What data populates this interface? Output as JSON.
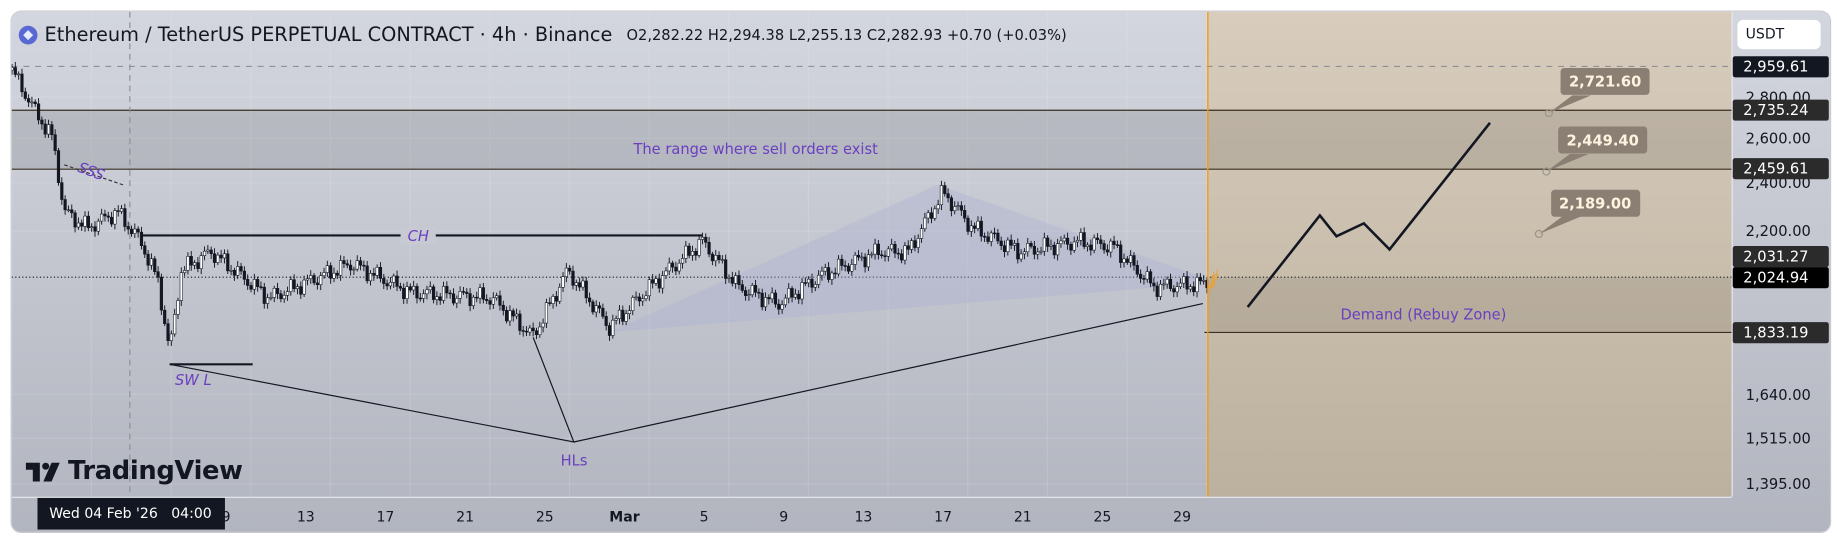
{
  "header": {
    "symbol_title": "Ethereum / TetherUS PERPETUAL CONTRACT · 4h · Binance",
    "open": "O2,282.22",
    "high": "H2,294.38",
    "low": "L2,255.13",
    "close": "C2,282.93",
    "change": "+0.70 (+0.03%)",
    "icon": "ethereum-icon"
  },
  "price_axis": {
    "currency": "USDT",
    "ticks": [
      "2,800.00",
      "2,600.00",
      "2,400.00",
      "2,200.00",
      "1,640.00",
      "1,515.00",
      "1,395.00"
    ],
    "tick_values": [
      2800,
      2600,
      2400,
      2200,
      1640,
      1515,
      1395
    ],
    "labels": [
      {
        "text": "2,959.61",
        "value": 2959.61,
        "color": "#131722"
      },
      {
        "text": "2,735.24",
        "value": 2735.24,
        "color": "#2b2b2b"
      },
      {
        "text": "2,459.61",
        "value": 2459.61,
        "color": "#2b2b2b"
      },
      {
        "text": "2,031.27",
        "value": 2031.27,
        "color": "#2b2b2b"
      },
      {
        "text": "2,024.94",
        "value": 2024.94,
        "color": "#000000"
      },
      {
        "text": "1,833.19",
        "value": 1833.19,
        "color": "#2b2b2b"
      }
    ],
    "scale": "log"
  },
  "time_axis": {
    "ticks": [
      {
        "label": "9",
        "date": "2026-02-09T00:00"
      },
      {
        "label": "13",
        "date": "2026-02-13T00:00"
      },
      {
        "label": "17",
        "date": "2026-02-17T00:00"
      },
      {
        "label": "21",
        "date": "2026-02-21T00:00"
      },
      {
        "label": "25",
        "date": "2026-02-25T00:00"
      },
      {
        "label": "Mar",
        "date": "2026-03-01T00:00",
        "bold": true
      },
      {
        "label": "5",
        "date": "2026-03-05T00:00"
      },
      {
        "label": "9",
        "date": "2026-03-09T00:00"
      },
      {
        "label": "13",
        "date": "2026-03-13T00:00"
      },
      {
        "label": "17",
        "date": "2026-03-17T00:00"
      },
      {
        "label": "21",
        "date": "2026-03-21T00:00"
      },
      {
        "label": "25",
        "date": "2026-03-25T00:00"
      },
      {
        "label": "29",
        "date": "2026-03-29T00:00"
      }
    ],
    "crosshair_label": "Wed 04 Feb '26   04:00",
    "crosshair_date": "2026-02-04T04:00"
  },
  "branding": {
    "logo_text": "TradingView"
  },
  "annotations": {
    "sell_range_text": "The range where sell orders exist",
    "demand_text": "Demand (Rebuy Zone)",
    "ch_text": "CH",
    "swl_text": "SW L",
    "sss_text": "SSS",
    "hls_text": "HLs",
    "callouts": [
      {
        "text": "2,721.60",
        "value": 2721.6,
        "date": "2026-04-16T10:00"
      },
      {
        "text": "2,449.40",
        "value": 2449.4,
        "date": "2026-04-16T07:00"
      },
      {
        "text": "2,189.00",
        "value": 2189.0,
        "date": "2026-04-15T22:00"
      }
    ]
  },
  "chart_data": {
    "type": "candlestick",
    "timeframe": "4h",
    "exchange": "Binance",
    "yscale": "log",
    "ylim": [
      1360,
      3050
    ],
    "xlim": [
      "2026-01-29T06:00",
      "2026-04-28T00:00"
    ],
    "colors": {
      "up": "#ffffff",
      "down": "#131722",
      "future_candles": "#e6a23c",
      "marker_line": "#f39c12",
      "zone": "#cdbfab",
      "sell_range": "#a9abb2"
    },
    "price_path": [
      [
        "2026-01-29T06:00",
        2940
      ],
      [
        "2026-01-30T10:00",
        2730
      ],
      [
        "2026-01-31T07:00",
        2600
      ],
      [
        "2026-01-31T21:00",
        2278
      ],
      [
        "2026-02-02T01:00",
        2214
      ],
      [
        "2026-02-03T13:00",
        2278
      ],
      [
        "2026-02-04T17:00",
        2160
      ],
      [
        "2026-02-05T14:00",
        2010
      ],
      [
        "2026-02-06T04:00",
        1770
      ],
      [
        "2026-02-06T18:00",
        2050
      ],
      [
        "2026-02-08T06:00",
        2120
      ],
      [
        "2026-02-11T04:00",
        1950
      ],
      [
        "2026-02-15T07:00",
        2075
      ],
      [
        "2026-02-18T06:00",
        1970
      ],
      [
        "2026-02-22T08:00",
        1950
      ],
      [
        "2026-02-24T10:00",
        1820
      ],
      [
        "2026-02-26T04:00",
        2050
      ],
      [
        "2026-02-28T06:00",
        1850
      ],
      [
        "2026-03-02T14:00",
        2010
      ],
      [
        "2026-03-04T22:00",
        2160
      ],
      [
        "2026-03-06T17:00",
        1990
      ],
      [
        "2026-03-08T18:00",
        1930
      ],
      [
        "2026-03-10T20:00",
        2030
      ],
      [
        "2026-03-13T18:00",
        2120
      ],
      [
        "2026-03-15T06:00",
        2120
      ],
      [
        "2026-03-17T00:00",
        2360
      ],
      [
        "2026-03-18T11:00",
        2214
      ],
      [
        "2026-03-20T20:00",
        2120
      ],
      [
        "2026-03-23T18:00",
        2160
      ],
      [
        "2026-03-25T13:00",
        2140
      ],
      [
        "2026-03-27T14:00",
        1990
      ],
      [
        "2026-03-29T22:00",
        2000
      ],
      [
        "2026-03-30T20:00",
        2025
      ]
    ],
    "levels": {
      "top_dashed": 2959.61,
      "sell_range": [
        2459.61,
        2735.24
      ],
      "current_price": 2024.94,
      "demand_zone": [
        1833.19,
        2024.94
      ]
    },
    "marker_date": "2026-03-30T07:00",
    "ch_line": {
      "price": 2183,
      "from": "2026-02-04T17:00",
      "to": "2026-03-04T22:00"
    },
    "swl_line": {
      "price": 1731,
      "from": "2026-02-06T04:00",
      "to": "2026-02-10T08:00"
    },
    "sss_line": [
      [
        "2026-01-31T21:00",
        2479
      ],
      [
        "2026-02-03T20:00",
        2391
      ]
    ],
    "zigzag": [
      [
        "2026-02-06T04:00",
        1731
      ],
      [
        "2026-02-26T11:00",
        1505
      ],
      [
        "2026-02-24T10:00",
        1817
      ]
    ],
    "trendline": [
      [
        "2026-02-26T11:00",
        1505
      ],
      [
        "2026-03-30T01:00",
        1931
      ]
    ],
    "triangle": [
      [
        "2026-02-28T06:00",
        1834
      ],
      [
        "2026-03-16T17:00",
        2391
      ],
      [
        "2026-03-30T20:00",
        2006
      ]
    ],
    "projection": [
      [
        "2026-04-01T07:00",
        1919
      ],
      [
        "2026-04-04T22:00",
        2263
      ],
      [
        "2026-04-05T18:00",
        2180
      ],
      [
        "2026-04-07T03:00",
        2231
      ],
      [
        "2026-04-08T10:00",
        2129
      ],
      [
        "2026-04-13T11:00",
        2674
      ]
    ]
  }
}
